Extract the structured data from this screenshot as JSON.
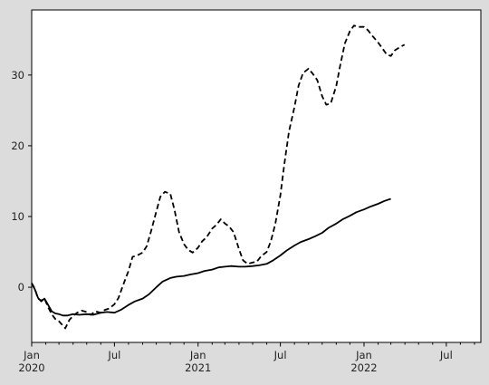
{
  "chart_data": {
    "type": "line",
    "title": "",
    "xlabel": "",
    "ylabel": "",
    "background": "#ffffff",
    "figure_background": "#dcdcdc",
    "line_color": "#000000",
    "x_range": [
      "2020-01-01",
      "2022-09-15"
    ],
    "ylim": [
      -7.8,
      39.2
    ],
    "y_ticks": [
      {
        "value": 0,
        "label": "0"
      },
      {
        "value": 10,
        "label": "10"
      },
      {
        "value": 20,
        "label": "20"
      },
      {
        "value": 30,
        "label": "30"
      }
    ],
    "x_ticks_major": [
      {
        "date": "2020-01-01",
        "label": "Jan\n2020"
      },
      {
        "date": "2020-07-01",
        "label": "Jul"
      },
      {
        "date": "2021-01-01",
        "label": "Jan\n2021"
      },
      {
        "date": "2021-07-01",
        "label": "Jul"
      },
      {
        "date": "2022-01-01",
        "label": "Jan\n2022"
      },
      {
        "date": "2022-07-01",
        "label": "Jul"
      }
    ],
    "x_ticks_minor": [
      "2020-02-01",
      "2020-03-01",
      "2020-04-01",
      "2020-05-01",
      "2020-06-01",
      "2020-08-01",
      "2020-09-01",
      "2020-10-01",
      "2020-11-01",
      "2020-12-01",
      "2021-02-01",
      "2021-03-01",
      "2021-04-01",
      "2021-05-01",
      "2021-06-01",
      "2021-08-01",
      "2021-09-01",
      "2021-10-01",
      "2021-11-01",
      "2021-12-01",
      "2022-02-01",
      "2022-03-01",
      "2022-04-01",
      "2022-05-01",
      "2022-06-01",
      "2022-08-01",
      "2022-09-01"
    ],
    "series": [
      {
        "style": "dashed",
        "points": [
          [
            "2020-01-01",
            0.6
          ],
          [
            "2020-01-08",
            -0.2
          ],
          [
            "2020-01-15",
            -1.6
          ],
          [
            "2020-01-22",
            -1.9
          ],
          [
            "2020-01-29",
            -1.6
          ],
          [
            "2020-02-06",
            -2.8
          ],
          [
            "2020-02-14",
            -3.8
          ],
          [
            "2020-02-22",
            -4.5
          ],
          [
            "2020-03-01",
            -4.8
          ],
          [
            "2020-03-08",
            -5.3
          ],
          [
            "2020-03-15",
            -5.8
          ],
          [
            "2020-03-24",
            -4.6
          ],
          [
            "2020-04-02",
            -4.0
          ],
          [
            "2020-04-10",
            -3.6
          ],
          [
            "2020-04-20",
            -3.3
          ],
          [
            "2020-05-01",
            -3.5
          ],
          [
            "2020-05-10",
            -3.9
          ],
          [
            "2020-05-20",
            -3.4
          ],
          [
            "2020-06-01",
            -3.6
          ],
          [
            "2020-06-10",
            -3.2
          ],
          [
            "2020-06-20",
            -3.0
          ],
          [
            "2020-07-01",
            -2.4
          ],
          [
            "2020-07-10",
            -1.5
          ],
          [
            "2020-07-20",
            0.3
          ],
          [
            "2020-08-01",
            2.3
          ],
          [
            "2020-08-10",
            4.3
          ],
          [
            "2020-08-20",
            4.5
          ],
          [
            "2020-09-01",
            4.9
          ],
          [
            "2020-09-10",
            5.8
          ],
          [
            "2020-09-20",
            8.0
          ],
          [
            "2020-10-01",
            10.7
          ],
          [
            "2020-10-10",
            12.8
          ],
          [
            "2020-10-20",
            13.5
          ],
          [
            "2020-11-01",
            13.2
          ],
          [
            "2020-11-10",
            11.0
          ],
          [
            "2020-11-20",
            7.8
          ],
          [
            "2020-12-01",
            6.1
          ],
          [
            "2020-12-10",
            5.3
          ],
          [
            "2020-12-20",
            4.9
          ],
          [
            "2021-01-01",
            5.6
          ],
          [
            "2021-01-10",
            6.5
          ],
          [
            "2021-01-20",
            7.1
          ],
          [
            "2021-02-01",
            8.3
          ],
          [
            "2021-02-10",
            8.8
          ],
          [
            "2021-02-20",
            9.6
          ],
          [
            "2021-03-01",
            9.0
          ],
          [
            "2021-03-10",
            8.6
          ],
          [
            "2021-03-20",
            7.8
          ],
          [
            "2021-04-01",
            5.4
          ],
          [
            "2021-04-10",
            3.8
          ],
          [
            "2021-04-20",
            3.3
          ],
          [
            "2021-05-01",
            3.5
          ],
          [
            "2021-05-10",
            3.6
          ],
          [
            "2021-05-20",
            4.4
          ],
          [
            "2021-06-01",
            5.0
          ],
          [
            "2021-06-10",
            6.5
          ],
          [
            "2021-06-20",
            9.0
          ],
          [
            "2021-07-01",
            13.0
          ],
          [
            "2021-07-10",
            17.5
          ],
          [
            "2021-07-20",
            22.0
          ],
          [
            "2021-08-01",
            25.5
          ],
          [
            "2021-08-10",
            28.5
          ],
          [
            "2021-08-20",
            30.3
          ],
          [
            "2021-09-01",
            30.9
          ],
          [
            "2021-09-10",
            30.2
          ],
          [
            "2021-09-20",
            29.3
          ],
          [
            "2021-10-01",
            27.0
          ],
          [
            "2021-10-10",
            25.8
          ],
          [
            "2021-10-20",
            26.0
          ],
          [
            "2021-11-01",
            28.5
          ],
          [
            "2021-11-10",
            31.5
          ],
          [
            "2021-11-20",
            34.5
          ],
          [
            "2021-12-01",
            36.2
          ],
          [
            "2021-12-10",
            37.0
          ],
          [
            "2021-12-20",
            36.8
          ],
          [
            "2022-01-01",
            36.8
          ],
          [
            "2022-01-10",
            36.3
          ],
          [
            "2022-01-20",
            35.5
          ],
          [
            "2022-02-01",
            34.6
          ],
          [
            "2022-02-10",
            33.8
          ],
          [
            "2022-02-20",
            32.9
          ],
          [
            "2022-03-01",
            32.7
          ],
          [
            "2022-03-10",
            33.5
          ],
          [
            "2022-03-20",
            33.9
          ],
          [
            "2022-03-31",
            34.3
          ]
        ]
      },
      {
        "style": "solid",
        "points": [
          [
            "2020-01-01",
            0.5
          ],
          [
            "2020-01-08",
            -0.3
          ],
          [
            "2020-01-15",
            -1.5
          ],
          [
            "2020-01-22",
            -2.0
          ],
          [
            "2020-01-29",
            -1.6
          ],
          [
            "2020-02-06",
            -2.5
          ],
          [
            "2020-02-14",
            -3.4
          ],
          [
            "2020-02-22",
            -3.7
          ],
          [
            "2020-03-01",
            -3.8
          ],
          [
            "2020-03-10",
            -4.0
          ],
          [
            "2020-03-20",
            -4.0
          ],
          [
            "2020-04-01",
            -3.8
          ],
          [
            "2020-04-15",
            -3.9
          ],
          [
            "2020-05-01",
            -3.8
          ],
          [
            "2020-05-15",
            -3.9
          ],
          [
            "2020-06-01",
            -3.6
          ],
          [
            "2020-06-15",
            -3.5
          ],
          [
            "2020-07-01",
            -3.6
          ],
          [
            "2020-07-15",
            -3.2
          ],
          [
            "2020-08-01",
            -2.5
          ],
          [
            "2020-08-15",
            -2.0
          ],
          [
            "2020-09-01",
            -1.6
          ],
          [
            "2020-09-15",
            -1.0
          ],
          [
            "2020-10-01",
            0.0
          ],
          [
            "2020-10-15",
            0.8
          ],
          [
            "2020-11-01",
            1.3
          ],
          [
            "2020-11-15",
            1.5
          ],
          [
            "2020-12-01",
            1.6
          ],
          [
            "2020-12-15",
            1.8
          ],
          [
            "2021-01-01",
            2.0
          ],
          [
            "2021-01-15",
            2.3
          ],
          [
            "2021-02-01",
            2.5
          ],
          [
            "2021-02-15",
            2.8
          ],
          [
            "2021-03-01",
            2.9
          ],
          [
            "2021-03-15",
            3.0
          ],
          [
            "2021-04-01",
            2.9
          ],
          [
            "2021-04-15",
            2.9
          ],
          [
            "2021-05-01",
            3.0
          ],
          [
            "2021-05-15",
            3.1
          ],
          [
            "2021-06-01",
            3.3
          ],
          [
            "2021-06-15",
            3.8
          ],
          [
            "2021-07-01",
            4.5
          ],
          [
            "2021-07-15",
            5.2
          ],
          [
            "2021-08-01",
            5.9
          ],
          [
            "2021-08-15",
            6.4
          ],
          [
            "2021-09-01",
            6.8
          ],
          [
            "2021-09-15",
            7.2
          ],
          [
            "2021-10-01",
            7.7
          ],
          [
            "2021-10-15",
            8.4
          ],
          [
            "2021-11-01",
            9.0
          ],
          [
            "2021-11-15",
            9.6
          ],
          [
            "2021-12-01",
            10.1
          ],
          [
            "2021-12-15",
            10.6
          ],
          [
            "2022-01-01",
            11.0
          ],
          [
            "2022-01-15",
            11.4
          ],
          [
            "2022-02-01",
            11.8
          ],
          [
            "2022-02-15",
            12.2
          ],
          [
            "2022-03-01",
            12.5
          ]
        ]
      }
    ]
  }
}
